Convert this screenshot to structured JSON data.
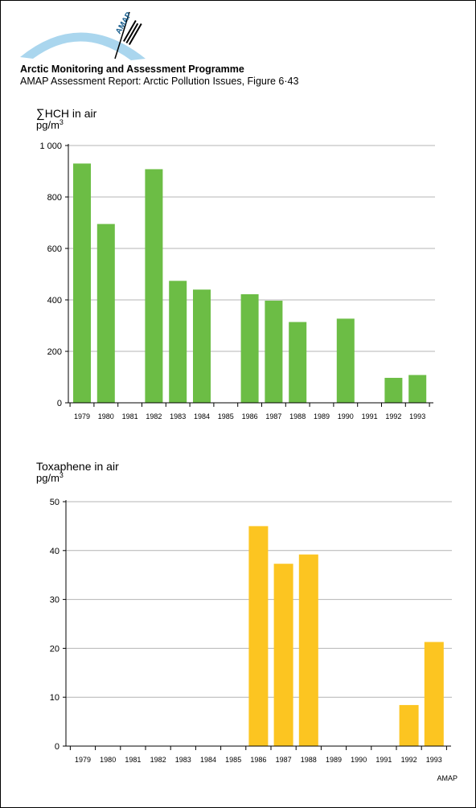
{
  "header": {
    "title": "Arctic Monitoring and Assessment Programme",
    "subtitle": "AMAP Assessment Report: Arctic Pollution Issues, Figure 6·43",
    "logo_text": "AMAP"
  },
  "footer": {
    "credit": "AMAP"
  },
  "colors": {
    "green": "#6cbd45",
    "yellow": "#fcc521",
    "grid": "#b4b4b4"
  },
  "chart_data": [
    {
      "type": "bar",
      "title_symbol": "∑",
      "title": "HCH in air",
      "unit": "pg/m",
      "unit_sup": "3",
      "categories": [
        "1979",
        "1980",
        "1981",
        "1982",
        "1983",
        "1984",
        "1985",
        "1986",
        "1987",
        "1988",
        "1989",
        "1990",
        "1991",
        "1992",
        "1993"
      ],
      "values": [
        930,
        695,
        null,
        908,
        474,
        440,
        null,
        422,
        397,
        314,
        null,
        327,
        null,
        97,
        108
      ],
      "yticks": [
        0,
        200,
        400,
        600,
        800,
        1000
      ],
      "ytick_labels": [
        "0",
        "200",
        "400",
        "600",
        "800",
        "1 000"
      ],
      "ylim": [
        0,
        1000
      ],
      "color": "#6cbd45",
      "grid": true
    },
    {
      "type": "bar",
      "title": "Toxaphene in air",
      "unit": "pg/m",
      "unit_sup": "3",
      "categories": [
        "1979",
        "1980",
        "1981",
        "1982",
        "1983",
        "1984",
        "1985",
        "1986",
        "1987",
        "1988",
        "1989",
        "1990",
        "1991",
        "1992",
        "1993"
      ],
      "values": [
        null,
        null,
        null,
        null,
        null,
        null,
        null,
        45,
        37.3,
        39.2,
        null,
        null,
        null,
        8.4,
        21.3
      ],
      "yticks": [
        0,
        10,
        20,
        30,
        40,
        50
      ],
      "ytick_labels": [
        "0",
        "10",
        "20",
        "30",
        "40",
        "50"
      ],
      "ylim": [
        0,
        50
      ],
      "color": "#fcc521",
      "grid": true
    }
  ]
}
